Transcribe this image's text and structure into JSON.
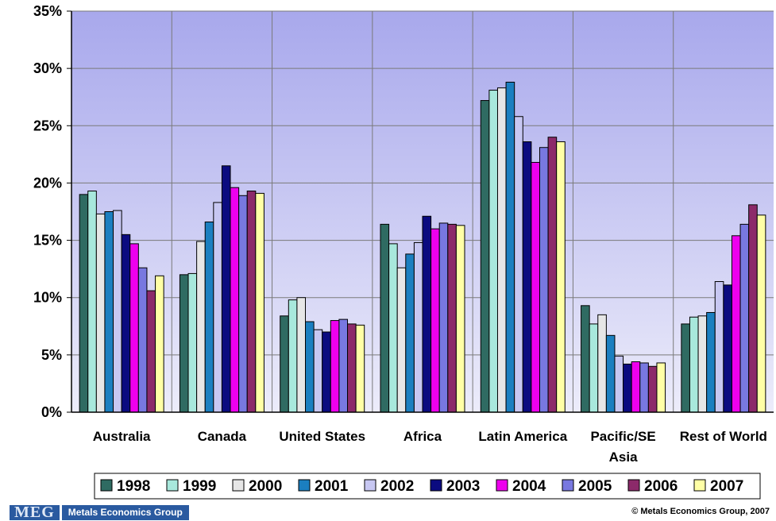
{
  "chart_data": {
    "type": "bar",
    "categories": [
      [
        "Australia"
      ],
      [
        "Canada"
      ],
      [
        "United States"
      ],
      [
        "Africa"
      ],
      [
        "Latin America"
      ],
      [
        "Pacific/SE",
        "Asia"
      ],
      [
        "Rest of World"
      ]
    ],
    "series": [
      {
        "name": "1998",
        "color": "#2f6b62",
        "values": [
          19.0,
          12.0,
          8.4,
          16.4,
          27.2,
          9.3,
          7.7
        ]
      },
      {
        "name": "1999",
        "color": "#a8e8dc",
        "values": [
          19.3,
          12.1,
          9.8,
          14.7,
          28.1,
          7.7,
          8.3
        ]
      },
      {
        "name": "2000",
        "color": "#e6e6e6",
        "values": [
          17.3,
          14.9,
          10.0,
          12.6,
          28.3,
          8.5,
          8.4
        ]
      },
      {
        "name": "2001",
        "color": "#1b7fc0",
        "values": [
          17.5,
          16.6,
          7.9,
          13.8,
          28.8,
          6.7,
          8.7
        ]
      },
      {
        "name": "2002",
        "color": "#c7c7f2",
        "values": [
          17.6,
          18.3,
          7.2,
          14.8,
          25.8,
          4.9,
          11.4
        ]
      },
      {
        "name": "2003",
        "color": "#0b0b80",
        "values": [
          15.5,
          21.5,
          7.0,
          17.1,
          23.6,
          4.2,
          11.1
        ]
      },
      {
        "name": "2004",
        "color": "#ee00ee",
        "values": [
          14.7,
          19.6,
          8.0,
          16.0,
          21.8,
          4.4,
          15.4
        ]
      },
      {
        "name": "2005",
        "color": "#7878e0",
        "values": [
          12.6,
          18.9,
          8.1,
          16.5,
          23.1,
          4.3,
          16.4
        ]
      },
      {
        "name": "2006",
        "color": "#8c2a6a",
        "values": [
          10.6,
          19.3,
          7.7,
          16.4,
          24.0,
          4.0,
          18.1
        ]
      },
      {
        "name": "2007",
        "color": "#ffffa6",
        "values": [
          11.9,
          19.1,
          7.6,
          16.3,
          23.6,
          4.3,
          17.2
        ]
      }
    ],
    "yticks": [
      "0%",
      "5%",
      "10%",
      "15%",
      "20%",
      "25%",
      "30%",
      "35%"
    ],
    "ylim": [
      0,
      35
    ],
    "grid": true,
    "plot_background": "#b6b6ee",
    "legend_position": "bottom"
  },
  "footer": {
    "logo_text": "MEG",
    "logo_name": "Metals Economics Group",
    "copyright": "© Metals Economics Group, 2007"
  }
}
